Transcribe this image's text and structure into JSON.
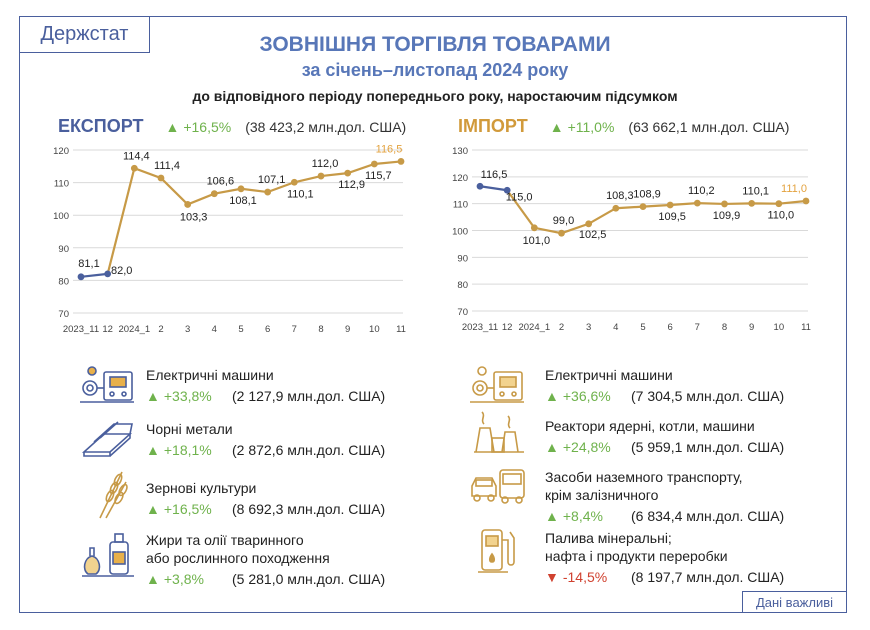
{
  "brand": "Держстат",
  "title_line1": "ЗОВНІШНЯ ТОРГІВЛЯ ТОВАРАМИ",
  "title_line2": "за січень–листопад 2024 року",
  "title_line3": "до відповідного періоду попереднього року, наростаючим підсумком",
  "export": {
    "name": "ЕКСПОРТ",
    "change": "+16,5%",
    "total": "(38 423,2  млн.дол. США)"
  },
  "import": {
    "name": "ІМПОРТ",
    "change": "+11,0%",
    "total": "(63 662,1 млн.дол. США)"
  },
  "colors": {
    "blue": "#4a5f9d",
    "gold": "#c79a47",
    "orange": "#e3a23e",
    "green": "#6fb24c",
    "red": "#d0412f",
    "grid": "#d9d9d9"
  },
  "chart_data": [
    {
      "type": "line",
      "title": "ЕКСПОРТ",
      "categories": [
        "2023_11",
        "12",
        "2024_1",
        "2",
        "3",
        "4",
        "5",
        "6",
        "7",
        "8",
        "9",
        "10",
        "11"
      ],
      "values": [
        81.1,
        82.0,
        114.4,
        111.4,
        103.3,
        106.6,
        108.1,
        107.1,
        110.1,
        112.0,
        112.9,
        115.7,
        116.5
      ],
      "labels": [
        "81,1",
        "82,0",
        "114,4",
        "111,4",
        "103,3",
        "106,6",
        "108,1",
        "107,1",
        "110,1",
        "112,0",
        "112,9",
        "115,7",
        "116,5"
      ],
      "ylim": [
        70,
        120
      ],
      "yticks": [
        70,
        80,
        90,
        100,
        110,
        120
      ],
      "grid": true
    },
    {
      "type": "line",
      "title": "ІМПОРТ",
      "categories": [
        "2023_11",
        "12",
        "2024_1",
        "2",
        "3",
        "4",
        "5",
        "6",
        "7",
        "8",
        "9",
        "10",
        "11"
      ],
      "values": [
        116.5,
        115.0,
        101.0,
        99.0,
        102.5,
        108.3,
        108.9,
        109.5,
        110.2,
        109.9,
        110.1,
        110.0,
        111.0
      ],
      "labels": [
        "116,5",
        "115,0",
        "101,0",
        "99,0",
        "102,5",
        "108,3",
        "108,9",
        "109,5",
        "110,2",
        "109,9",
        "110,1",
        "110,0",
        "111,0"
      ],
      "ylim": [
        70,
        130
      ],
      "yticks": [
        70,
        80,
        90,
        100,
        110,
        120,
        130
      ],
      "grid": true
    }
  ],
  "export_items": [
    {
      "name": "Електричні машини",
      "dir": "up",
      "arrow": "▲",
      "change": "+33,8%",
      "value": "(2 127,9 млн.дол. США)",
      "icon": "electric-machines-icon"
    },
    {
      "name": "Чорні метали",
      "dir": "up",
      "arrow": "▲",
      "change": "+18,1%",
      "value": "(2 872,6 млн.дол. США)",
      "icon": "steel-beams-icon"
    },
    {
      "name": "Зернові культури",
      "dir": "up",
      "arrow": "▲",
      "change": "+16,5%",
      "value": "(8 692,3 млн.дол. США)",
      "icon": "wheat-icon"
    },
    {
      "name": "Жири та олії тваринного",
      "name2": "або рослинного походження",
      "dir": "up",
      "arrow": "▲",
      "change": "+3,8%",
      "value": "(5 281,0 млн.дол. США)",
      "icon": "oil-bottles-icon"
    }
  ],
  "import_items": [
    {
      "name": "Електричні машини",
      "dir": "up",
      "arrow": "▲",
      "change": "+36,6%",
      "value": "(7 304,5 млн.дол. США)",
      "icon": "electric-machines-icon"
    },
    {
      "name": "Реактори ядерні, котли, машини",
      "dir": "up",
      "arrow": "▲",
      "change": "+24,8%",
      "value": "(5 959,1 млн.дол. США)",
      "icon": "reactor-plant-icon"
    },
    {
      "name": "Засоби наземного транспорту,",
      "name2": "крім залізничного",
      "dir": "up",
      "arrow": "▲",
      "change": "+8,4%",
      "value": "(6 834,4 млн.дол. США)",
      "icon": "car-bus-icon"
    },
    {
      "name": "Палива мінеральні;",
      "name2": "нафта і продукти переробки",
      "dir": "down",
      "arrow": "▼",
      "change": "-14,5%",
      "value": "(8 197,7 млн.дол. США)",
      "icon": "fuel-pump-icon"
    }
  ],
  "note": "Дані важливі"
}
